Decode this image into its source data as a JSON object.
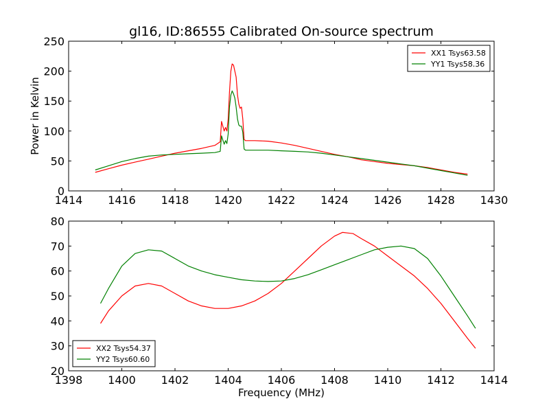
{
  "chart_data": [
    {
      "type": "line",
      "title": "gl16, ID:86555 Calibrated On-source spectrum",
      "xlabel": "",
      "ylabel": "Power in Kelvin",
      "xlim": [
        1414,
        1430
      ],
      "ylim": [
        0,
        250
      ],
      "xticks": [
        1414,
        1416,
        1418,
        1420,
        1422,
        1424,
        1426,
        1428,
        1430
      ],
      "yticks": [
        0,
        50,
        100,
        150,
        200,
        250
      ],
      "grid": false,
      "legend": "top-right",
      "series": [
        {
          "name": "XX1 Tsys63.58",
          "color": "#ff0000",
          "x": [
            1415.0,
            1415.5,
            1416.0,
            1416.5,
            1417.0,
            1417.5,
            1418.0,
            1418.5,
            1419.0,
            1419.5,
            1419.7,
            1419.75,
            1419.8,
            1419.85,
            1419.9,
            1419.95,
            1420.0,
            1420.05,
            1420.1,
            1420.15,
            1420.2,
            1420.25,
            1420.3,
            1420.35,
            1420.4,
            1420.45,
            1420.5,
            1420.55,
            1420.6,
            1420.65,
            1420.8,
            1421.0,
            1421.5,
            1422.0,
            1422.5,
            1423.0,
            1423.5,
            1424.0,
            1424.5,
            1425.0,
            1425.5,
            1426.0,
            1426.5,
            1427.0,
            1427.5,
            1428.0,
            1428.5,
            1429.0
          ],
          "y": [
            31,
            37,
            43,
            48,
            53,
            58,
            63,
            67,
            71,
            76,
            82,
            116,
            108,
            100,
            106,
            100,
            120,
            165,
            200,
            212,
            210,
            200,
            190,
            160,
            145,
            138,
            140,
            120,
            86,
            84,
            84,
            84,
            83,
            80,
            76,
            71,
            66,
            61,
            57,
            52,
            49,
            46,
            44,
            42,
            39,
            35,
            31,
            28
          ]
        },
        {
          "name": "YY1 Tsys58.36",
          "color": "#008000",
          "x": [
            1415.0,
            1415.5,
            1416.0,
            1416.5,
            1417.0,
            1417.5,
            1418.0,
            1418.5,
            1419.0,
            1419.5,
            1419.7,
            1419.75,
            1419.8,
            1419.85,
            1419.9,
            1419.95,
            1420.0,
            1420.05,
            1420.1,
            1420.15,
            1420.2,
            1420.25,
            1420.3,
            1420.35,
            1420.4,
            1420.45,
            1420.5,
            1420.55,
            1420.6,
            1420.65,
            1420.8,
            1421.0,
            1421.5,
            1422.0,
            1422.5,
            1423.0,
            1423.5,
            1424.0,
            1424.5,
            1425.0,
            1425.5,
            1426.0,
            1426.5,
            1427.0,
            1427.5,
            1428.0,
            1428.5,
            1429.0
          ],
          "y": [
            35,
            42,
            49,
            54,
            58,
            60,
            61,
            62,
            63,
            64,
            66,
            92,
            85,
            78,
            84,
            79,
            95,
            140,
            160,
            167,
            162,
            155,
            140,
            120,
            110,
            108,
            108,
            98,
            70,
            68,
            68,
            68,
            68,
            67,
            66,
            65,
            63,
            60,
            57,
            54,
            51,
            48,
            45,
            42,
            38,
            34,
            30,
            26
          ]
        }
      ]
    },
    {
      "type": "line",
      "title": "",
      "xlabel": "Frequency (MHz)",
      "ylabel": "",
      "xlim": [
        1398,
        1414
      ],
      "ylim": [
        20,
        80
      ],
      "xticks": [
        1398,
        1400,
        1402,
        1404,
        1406,
        1408,
        1410,
        1412,
        1414
      ],
      "yticks": [
        20,
        30,
        40,
        50,
        60,
        70,
        80
      ],
      "grid": false,
      "legend": "bottom-left",
      "series": [
        {
          "name": "XX2 Tsys54.37",
          "color": "#ff0000",
          "x": [
            1399.2,
            1399.5,
            1400.0,
            1400.5,
            1401.0,
            1401.5,
            1402.0,
            1402.5,
            1403.0,
            1403.5,
            1404.0,
            1404.5,
            1405.0,
            1405.5,
            1406.0,
            1406.5,
            1407.0,
            1407.5,
            1408.0,
            1408.3,
            1408.7,
            1409.0,
            1409.5,
            1410.0,
            1410.5,
            1411.0,
            1411.5,
            1412.0,
            1412.5,
            1413.0,
            1413.3
          ],
          "y": [
            39,
            44,
            50,
            54,
            55,
            54,
            51,
            48,
            46,
            45,
            45,
            46,
            48,
            51,
            55,
            60,
            65,
            70,
            74,
            75.5,
            75,
            73,
            70,
            66,
            62,
            58,
            53,
            47,
            40,
            33,
            29
          ]
        },
        {
          "name": "YY2 Tsys60.60",
          "color": "#008000",
          "x": [
            1399.2,
            1399.5,
            1400.0,
            1400.5,
            1401.0,
            1401.5,
            1402.0,
            1402.5,
            1403.0,
            1403.5,
            1404.0,
            1404.5,
            1405.0,
            1405.5,
            1406.0,
            1406.5,
            1407.0,
            1407.5,
            1408.0,
            1408.5,
            1409.0,
            1409.5,
            1410.0,
            1410.5,
            1411.0,
            1411.5,
            1412.0,
            1412.5,
            1413.0,
            1413.3
          ],
          "y": [
            47,
            53,
            62,
            67,
            68.5,
            68,
            65,
            62,
            60,
            58.5,
            57.5,
            56.5,
            56,
            55.8,
            56,
            57,
            58.5,
            60.5,
            62.5,
            64.5,
            66.5,
            68.5,
            69.5,
            70,
            69,
            65,
            58,
            50,
            42,
            37
          ]
        }
      ]
    }
  ]
}
